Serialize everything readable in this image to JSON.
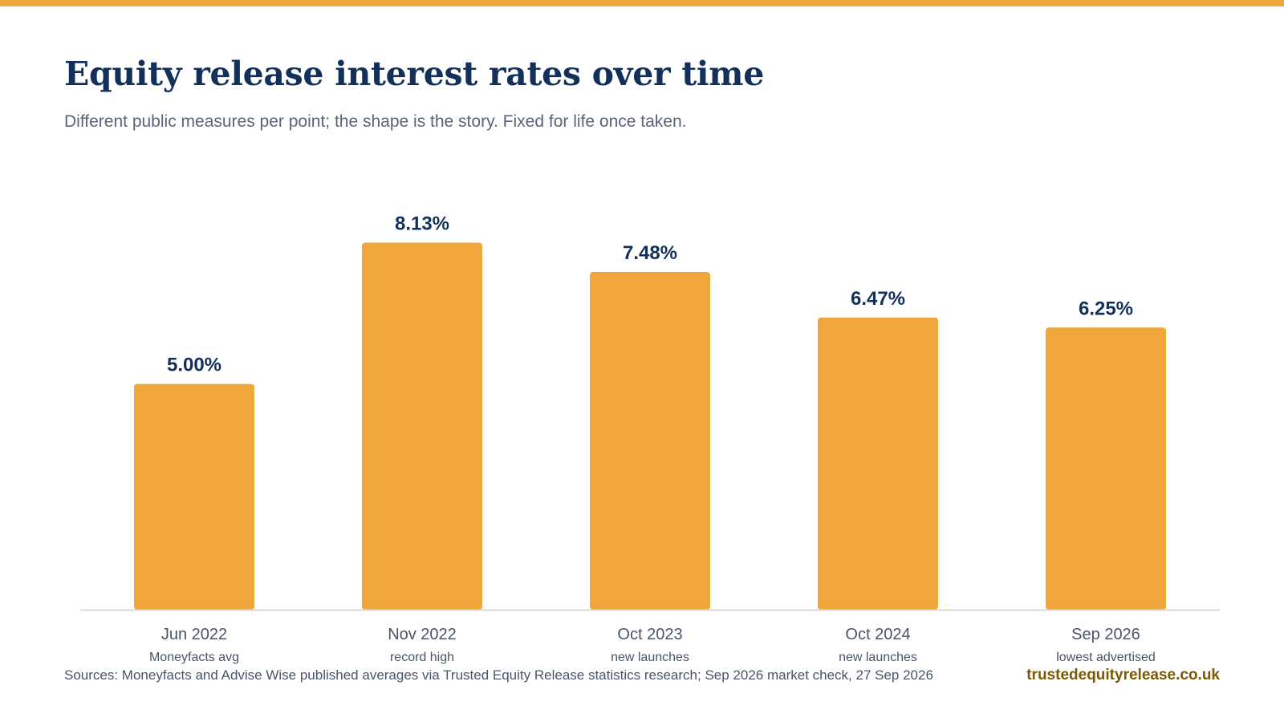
{
  "header": {
    "title": "Equity release interest rates over time",
    "subtitle": "Different public measures per point; the shape is the story. Fixed for life once taken."
  },
  "footer": {
    "sources": "Sources: Moneyfacts and Advise Wise published averages via Trusted Equity Release statistics research; Sep 2026 market check, 27 Sep 2026",
    "brand": "trustedequityrelease.co.uk"
  },
  "colors": {
    "accent": "#EFA63A",
    "bar": "#EFA63A",
    "title": "#13305B",
    "value_label": "#13305B",
    "text": "#4A5468",
    "brand": "#7A5A00",
    "axis": "#D8D8D8"
  },
  "chart_data": {
    "type": "bar",
    "title": "Equity release interest rates over time",
    "subtitle": "Different public measures per point; the shape is the story. Fixed for life once taken.",
    "categories": [
      "Jun 2022",
      "Nov 2022",
      "Oct 2023",
      "Oct 2024",
      "Sep 2026"
    ],
    "category_notes": [
      "Moneyfacts avg",
      "record high",
      "new launches",
      "new launches",
      "lowest advertised"
    ],
    "values": [
      5.0,
      8.13,
      7.48,
      6.47,
      6.25
    ],
    "value_labels": [
      "5.00%",
      "8.13%",
      "7.48%",
      "6.47%",
      "6.25%"
    ],
    "unit": "%",
    "xlabel": "",
    "ylabel": "",
    "ylim": [
      0,
      9.24
    ],
    "grid": false,
    "legend": "none"
  }
}
